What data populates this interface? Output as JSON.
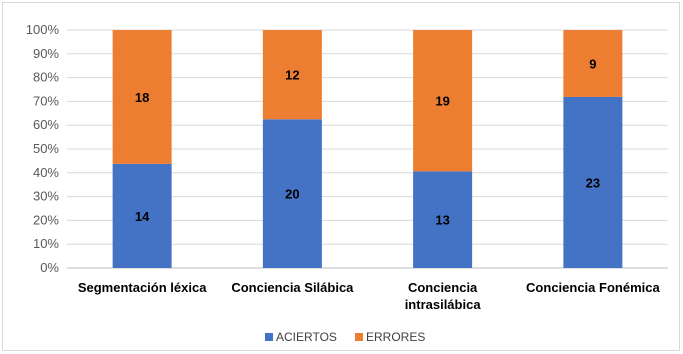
{
  "chart_data": {
    "type": "bar",
    "stacked": "percent",
    "categories": [
      [
        "Segmentación léxica"
      ],
      [
        "Conciencia Silábica"
      ],
      [
        "Conciencia",
        "intrasilábica"
      ],
      [
        "Conciencia Fonémica"
      ]
    ],
    "series": [
      {
        "name": "ACIERTOS",
        "values": [
          14,
          20,
          13,
          23
        ],
        "color": "#4472c4"
      },
      {
        "name": "ERRORES",
        "values": [
          18,
          12,
          19,
          9
        ],
        "color": "#ed7d31"
      }
    ],
    "ylim": [
      0,
      100
    ],
    "yticks": [
      "0%",
      "10%",
      "20%",
      "30%",
      "40%",
      "50%",
      "60%",
      "70%",
      "80%",
      "90%",
      "100%"
    ],
    "grid": true,
    "legend_position": "bottom"
  }
}
